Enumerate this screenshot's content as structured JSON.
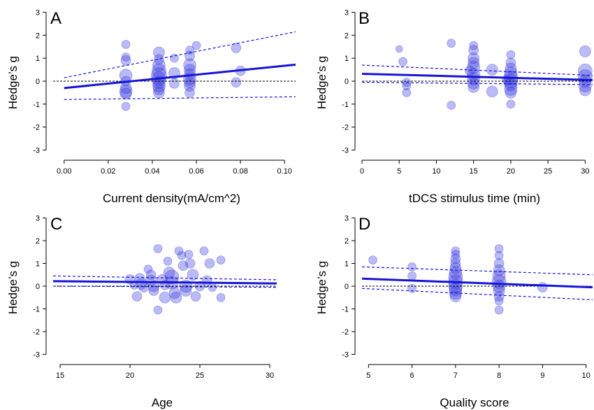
{
  "colors": {
    "point": "#3a3ae0",
    "line": "#1515d8",
    "zero": "#000000"
  },
  "chart_data": [
    {
      "type": "scatter",
      "panel": "A",
      "xlabel": "Current density(mA/cm^2)",
      "ylabel": "Hedge’s g",
      "xlim": [
        -0.005,
        0.105
      ],
      "ylim": [
        -3.2,
        3.2
      ],
      "xticks": [
        "0.00",
        "0.02",
        "0.04",
        "0.06",
        "0.08",
        "0.10"
      ],
      "xtick_values": [
        0,
        0.02,
        0.04,
        0.06,
        0.08,
        0.1
      ],
      "yticks": [
        -3,
        -2,
        -1,
        0,
        1,
        2,
        3
      ],
      "fit": {
        "x0": 0.0,
        "y0": -0.3,
        "x1": 0.105,
        "y1": 0.72
      },
      "ci_upper": {
        "x0": 0.0,
        "y0": 0.15,
        "x1": 0.105,
        "y1": 2.15
      },
      "ci_lower": {
        "x0": 0.0,
        "y0": -0.8,
        "x1": 0.105,
        "y1": -0.68
      },
      "points": [
        {
          "x": 0.028,
          "y": 1.6,
          "s": 6
        },
        {
          "x": 0.028,
          "y": 1.05,
          "s": 6
        },
        {
          "x": 0.028,
          "y": 0.9,
          "s": 7
        },
        {
          "x": 0.028,
          "y": 0.25,
          "s": 9
        },
        {
          "x": 0.028,
          "y": 0.0,
          "s": 7
        },
        {
          "x": 0.028,
          "y": -0.3,
          "s": 8
        },
        {
          "x": 0.028,
          "y": -0.45,
          "s": 9
        },
        {
          "x": 0.028,
          "y": -0.55,
          "s": 8
        },
        {
          "x": 0.028,
          "y": -1.1,
          "s": 6
        },
        {
          "x": 0.043,
          "y": 1.25,
          "s": 8
        },
        {
          "x": 0.043,
          "y": 0.95,
          "s": 7
        },
        {
          "x": 0.043,
          "y": 0.7,
          "s": 9
        },
        {
          "x": 0.043,
          "y": 0.45,
          "s": 10
        },
        {
          "x": 0.043,
          "y": 0.25,
          "s": 11
        },
        {
          "x": 0.043,
          "y": 0.1,
          "s": 10
        },
        {
          "x": 0.043,
          "y": -0.05,
          "s": 9
        },
        {
          "x": 0.043,
          "y": -0.2,
          "s": 9
        },
        {
          "x": 0.043,
          "y": -0.35,
          "s": 8
        },
        {
          "x": 0.043,
          "y": -0.5,
          "s": 8
        },
        {
          "x": 0.05,
          "y": 1.0,
          "s": 6
        },
        {
          "x": 0.05,
          "y": 0.35,
          "s": 8
        },
        {
          "x": 0.05,
          "y": -0.1,
          "s": 7
        },
        {
          "x": 0.057,
          "y": 1.35,
          "s": 6
        },
        {
          "x": 0.057,
          "y": 1.1,
          "s": 7
        },
        {
          "x": 0.057,
          "y": 0.7,
          "s": 9
        },
        {
          "x": 0.057,
          "y": 0.5,
          "s": 8
        },
        {
          "x": 0.057,
          "y": 0.3,
          "s": 8
        },
        {
          "x": 0.057,
          "y": 0.1,
          "s": 9
        },
        {
          "x": 0.057,
          "y": -0.05,
          "s": 8
        },
        {
          "x": 0.057,
          "y": -0.2,
          "s": 8
        },
        {
          "x": 0.057,
          "y": -0.5,
          "s": 7
        },
        {
          "x": 0.06,
          "y": 1.55,
          "s": 6
        },
        {
          "x": 0.078,
          "y": 1.45,
          "s": 7
        },
        {
          "x": 0.078,
          "y": -0.05,
          "s": 7
        },
        {
          "x": 0.08,
          "y": 0.45,
          "s": 7
        }
      ]
    },
    {
      "type": "scatter",
      "panel": "B",
      "xlabel": "tDCS stimulus time (min)",
      "ylabel": "Hedge’s g",
      "xlim": [
        0,
        31
      ],
      "ylim": [
        -3.2,
        3.2
      ],
      "xticks": [
        "0",
        "5",
        "10",
        "15",
        "20",
        "25",
        "30"
      ],
      "xtick_values": [
        0,
        5,
        10,
        15,
        20,
        25,
        30
      ],
      "yticks": [
        -3,
        -2,
        -1,
        0,
        1,
        2,
        3
      ],
      "fit": {
        "x0": 0,
        "y0": 0.32,
        "x1": 31,
        "y1": 0.05
      },
      "ci_upper": {
        "x0": 0,
        "y0": 0.7,
        "x1": 31,
        "y1": 0.25
      },
      "ci_lower": {
        "x0": 0,
        "y0": -0.05,
        "x1": 31,
        "y1": -0.15
      },
      "points": [
        {
          "x": 5,
          "y": 1.4,
          "s": 5
        },
        {
          "x": 5.5,
          "y": 0.85,
          "s": 6
        },
        {
          "x": 6,
          "y": -0.05,
          "s": 6
        },
        {
          "x": 6,
          "y": -0.2,
          "s": 6
        },
        {
          "x": 6,
          "y": -0.5,
          "s": 6
        },
        {
          "x": 12,
          "y": 1.65,
          "s": 6
        },
        {
          "x": 12,
          "y": -1.05,
          "s": 6
        },
        {
          "x": 15,
          "y": 1.55,
          "s": 6
        },
        {
          "x": 15,
          "y": 1.35,
          "s": 7
        },
        {
          "x": 15,
          "y": 1.0,
          "s": 8
        },
        {
          "x": 15,
          "y": 0.8,
          "s": 8
        },
        {
          "x": 15,
          "y": 0.6,
          "s": 9
        },
        {
          "x": 15,
          "y": 0.3,
          "s": 9
        },
        {
          "x": 15,
          "y": 0.1,
          "s": 9
        },
        {
          "x": 15,
          "y": -0.1,
          "s": 8
        },
        {
          "x": 15,
          "y": -0.25,
          "s": 8
        },
        {
          "x": 14.5,
          "y": 0.45,
          "s": 7
        },
        {
          "x": 17.5,
          "y": 0.5,
          "s": 8
        },
        {
          "x": 17.5,
          "y": -0.45,
          "s": 8
        },
        {
          "x": 20,
          "y": 1.15,
          "s": 6
        },
        {
          "x": 20,
          "y": 0.8,
          "s": 7
        },
        {
          "x": 20,
          "y": 0.55,
          "s": 8
        },
        {
          "x": 20,
          "y": 0.35,
          "s": 9
        },
        {
          "x": 20,
          "y": 0.15,
          "s": 10
        },
        {
          "x": 20,
          "y": 0.0,
          "s": 10
        },
        {
          "x": 20,
          "y": -0.15,
          "s": 9
        },
        {
          "x": 20,
          "y": -0.35,
          "s": 9
        },
        {
          "x": 20,
          "y": -0.5,
          "s": 8
        },
        {
          "x": 19.5,
          "y": 0.05,
          "s": 7
        },
        {
          "x": 20,
          "y": -1.0,
          "s": 6
        },
        {
          "x": 30,
          "y": 1.3,
          "s": 8
        },
        {
          "x": 30,
          "y": 0.45,
          "s": 10
        },
        {
          "x": 30,
          "y": 0.2,
          "s": 10
        },
        {
          "x": 30,
          "y": 0.0,
          "s": 9
        },
        {
          "x": 30,
          "y": -0.2,
          "s": 9
        },
        {
          "x": 30,
          "y": -0.4,
          "s": 8
        }
      ]
    },
    {
      "type": "scatter",
      "panel": "C",
      "xlabel": "Age",
      "ylabel": "Hedge’s g",
      "xlim": [
        14.5,
        30.5
      ],
      "ylim": [
        -3.2,
        3.2
      ],
      "xticks": [
        "15",
        "20",
        "25",
        "30"
      ],
      "xtick_values": [
        15,
        20,
        25,
        30
      ],
      "yticks": [
        -3,
        -2,
        -1,
        0,
        1,
        2,
        3
      ],
      "fit": {
        "x0": 14.5,
        "y0": 0.22,
        "x1": 30.5,
        "y1": 0.12
      },
      "ci_upper": {
        "x0": 14.5,
        "y0": 0.45,
        "x1": 30.5,
        "y1": 0.28
      },
      "ci_lower": {
        "x0": 14.5,
        "y0": 0.0,
        "x1": 30.5,
        "y1": -0.05
      },
      "points": [
        {
          "x": 20,
          "y": 0.3,
          "s": 7
        },
        {
          "x": 20.3,
          "y": 0.05,
          "s": 6
        },
        {
          "x": 20.5,
          "y": -0.45,
          "s": 7
        },
        {
          "x": 20.7,
          "y": 0.35,
          "s": 7
        },
        {
          "x": 20.8,
          "y": 0.1,
          "s": 8
        },
        {
          "x": 21,
          "y": -0.05,
          "s": 7
        },
        {
          "x": 21.3,
          "y": 0.75,
          "s": 6
        },
        {
          "x": 21.5,
          "y": 0.5,
          "s": 7
        },
        {
          "x": 21.5,
          "y": 0.25,
          "s": 8
        },
        {
          "x": 21.7,
          "y": 0.0,
          "s": 8
        },
        {
          "x": 21.7,
          "y": -0.2,
          "s": 7
        },
        {
          "x": 22,
          "y": 1.65,
          "s": 6
        },
        {
          "x": 22,
          "y": -1.05,
          "s": 6
        },
        {
          "x": 22.3,
          "y": 0.3,
          "s": 7
        },
        {
          "x": 22.5,
          "y": -0.5,
          "s": 8
        },
        {
          "x": 22.5,
          "y": 0.05,
          "s": 7
        },
        {
          "x": 22.7,
          "y": 1.1,
          "s": 6
        },
        {
          "x": 22.8,
          "y": 0.6,
          "s": 8
        },
        {
          "x": 23,
          "y": 0.4,
          "s": 10
        },
        {
          "x": 23,
          "y": 0.15,
          "s": 9
        },
        {
          "x": 23.2,
          "y": -0.3,
          "s": 8
        },
        {
          "x": 23.3,
          "y": -0.5,
          "s": 8
        },
        {
          "x": 23.5,
          "y": 1.55,
          "s": 6
        },
        {
          "x": 23.7,
          "y": 1.35,
          "s": 6
        },
        {
          "x": 23.8,
          "y": 0.9,
          "s": 7
        },
        {
          "x": 24,
          "y": 0.0,
          "s": 9
        },
        {
          "x": 24,
          "y": -0.2,
          "s": 8
        },
        {
          "x": 24.2,
          "y": 1.4,
          "s": 6
        },
        {
          "x": 24.3,
          "y": 1.0,
          "s": 7
        },
        {
          "x": 24.5,
          "y": 0.5,
          "s": 8
        },
        {
          "x": 24.7,
          "y": -0.45,
          "s": 7
        },
        {
          "x": 25,
          "y": 0.0,
          "s": 7
        },
        {
          "x": 25.3,
          "y": 1.55,
          "s": 6
        },
        {
          "x": 25.5,
          "y": 0.25,
          "s": 7
        },
        {
          "x": 25.7,
          "y": 1.0,
          "s": 7
        },
        {
          "x": 25.9,
          "y": -0.05,
          "s": 6
        },
        {
          "x": 26.5,
          "y": 1.15,
          "s": 6
        },
        {
          "x": 26.5,
          "y": -0.5,
          "s": 6
        }
      ]
    },
    {
      "type": "scatter",
      "panel": "D",
      "xlabel": "Quality score",
      "ylabel": "Hedge’s g",
      "xlim": [
        4.85,
        10.15
      ],
      "ylim": [
        -3.2,
        3.2
      ],
      "xticks": [
        "5",
        "6",
        "7",
        "8",
        "9",
        "10"
      ],
      "xtick_values": [
        5,
        6,
        7,
        8,
        9,
        10
      ],
      "yticks": [
        -3,
        -2,
        -1,
        0,
        1,
        2,
        3
      ],
      "fit": {
        "x0": 4.85,
        "y0": 0.33,
        "x1": 10.15,
        "y1": -0.05
      },
      "ci_upper": {
        "x0": 4.85,
        "y0": 0.85,
        "x1": 10.15,
        "y1": 0.5
      },
      "ci_lower": {
        "x0": 4.85,
        "y0": -0.1,
        "x1": 10.15,
        "y1": -0.6
      },
      "points": [
        {
          "x": 5.1,
          "y": 1.15,
          "s": 6
        },
        {
          "x": 6,
          "y": 0.85,
          "s": 6
        },
        {
          "x": 6,
          "y": 0.45,
          "s": 6
        },
        {
          "x": 6,
          "y": -0.1,
          "s": 6
        },
        {
          "x": 7,
          "y": 1.55,
          "s": 6
        },
        {
          "x": 7,
          "y": 1.4,
          "s": 6
        },
        {
          "x": 7,
          "y": 1.2,
          "s": 7
        },
        {
          "x": 7,
          "y": 1.0,
          "s": 7
        },
        {
          "x": 7,
          "y": 0.8,
          "s": 8
        },
        {
          "x": 7,
          "y": 0.6,
          "s": 9
        },
        {
          "x": 7,
          "y": 0.4,
          "s": 10
        },
        {
          "x": 7,
          "y": 0.2,
          "s": 10
        },
        {
          "x": 7,
          "y": 0.0,
          "s": 10
        },
        {
          "x": 7,
          "y": -0.15,
          "s": 9
        },
        {
          "x": 7,
          "y": -0.3,
          "s": 9
        },
        {
          "x": 7,
          "y": -0.45,
          "s": 8
        },
        {
          "x": 8,
          "y": 1.65,
          "s": 6
        },
        {
          "x": 8,
          "y": 1.35,
          "s": 6
        },
        {
          "x": 8,
          "y": 1.0,
          "s": 7
        },
        {
          "x": 8,
          "y": 0.7,
          "s": 8
        },
        {
          "x": 8,
          "y": 0.45,
          "s": 9
        },
        {
          "x": 8,
          "y": 0.2,
          "s": 10
        },
        {
          "x": 8,
          "y": 0.0,
          "s": 9
        },
        {
          "x": 8,
          "y": -0.2,
          "s": 8
        },
        {
          "x": 8,
          "y": -0.45,
          "s": 7
        },
        {
          "x": 8,
          "y": -0.65,
          "s": 6
        },
        {
          "x": 8,
          "y": -1.05,
          "s": 6
        },
        {
          "x": 9,
          "y": -0.05,
          "s": 7
        }
      ]
    }
  ]
}
